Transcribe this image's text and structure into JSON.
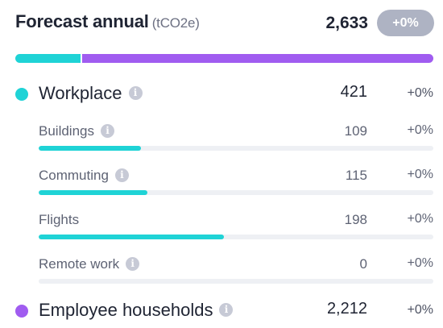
{
  "header": {
    "title": "Forecast annual",
    "unit": "(tCO2e)",
    "total": "2,633",
    "change": "+0%"
  },
  "colors": {
    "workplace": "#1fd3d6",
    "households": "#a05cf0",
    "badge": "#aeb3c3",
    "track": "#eef0f4"
  },
  "split": {
    "workplace_share": 0.16,
    "households_share": 0.84
  },
  "workplace": {
    "label": "Workplace",
    "value": "421",
    "change": "+0%",
    "items": [
      {
        "label": "Buildings",
        "value": "109",
        "change": "+0%",
        "progress": 0.26
      },
      {
        "label": "Commuting",
        "value": "115",
        "change": "+0%",
        "progress": 0.275
      },
      {
        "label": "Flights",
        "value": "198",
        "change": "+0%",
        "progress": 0.47
      },
      {
        "label": "Remote work",
        "value": "0",
        "change": "+0%",
        "progress": 0
      }
    ]
  },
  "households": {
    "label": "Employee households",
    "value": "2,212",
    "change": "+0%"
  },
  "icons": {
    "info": "info-icon",
    "info_glyph": "i"
  }
}
